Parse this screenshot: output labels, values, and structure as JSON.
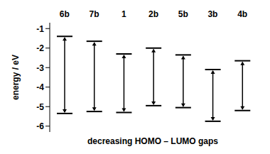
{
  "chart_data": {
    "type": "range",
    "categories": [
      "6b",
      "7b",
      "1",
      "2b",
      "5b",
      "3b",
      "4b"
    ],
    "values": [
      [
        -5.35,
        -1.4
      ],
      [
        -5.25,
        -1.65
      ],
      [
        -5.3,
        -2.3
      ],
      [
        -4.95,
        -2.0
      ],
      [
        -5.05,
        -2.35
      ],
      [
        -5.75,
        -3.1
      ],
      [
        -5.2,
        -2.65
      ]
    ],
    "x_label": "decreasing HOMO – LUMO gaps",
    "y_label": "energy / eV",
    "ylim": [
      -6.3,
      -0.7
    ],
    "yticks": [
      -6,
      -5,
      -4,
      -3,
      -2,
      -1
    ],
    "color": "#000000",
    "grid": false
  }
}
